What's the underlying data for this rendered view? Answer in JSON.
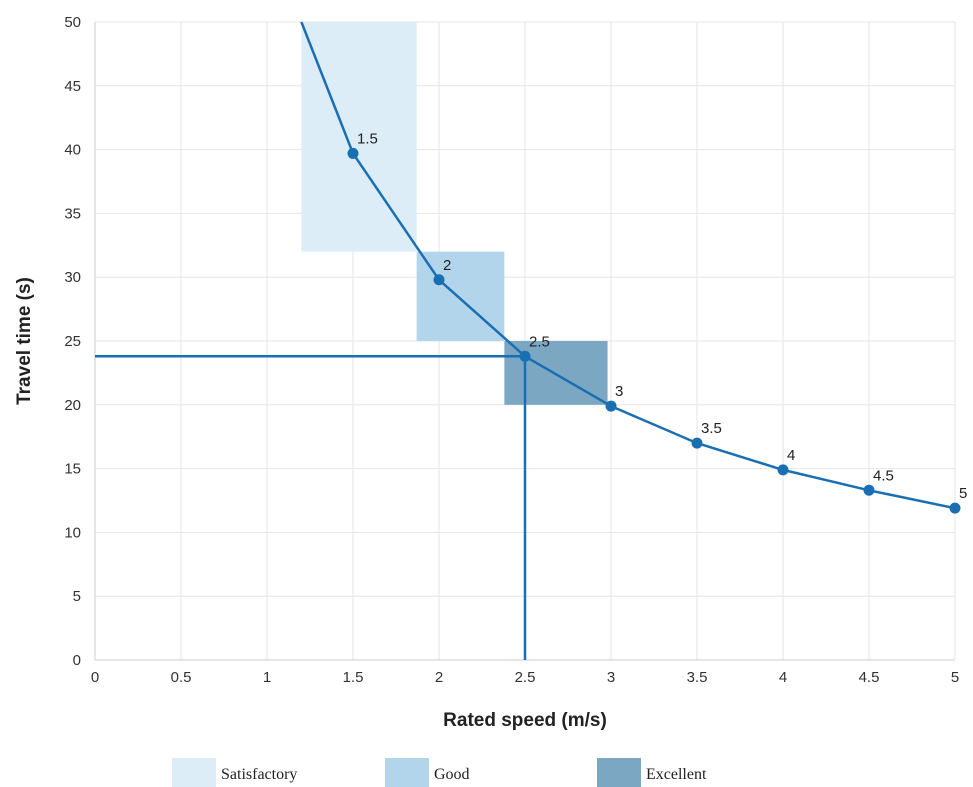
{
  "chart_data": {
    "type": "line",
    "title": "",
    "xlabel": "Rated speed (m/s)",
    "ylabel": "Travel time (s)",
    "xlim": [
      0,
      5
    ],
    "ylim": [
      0,
      50
    ],
    "x_ticks": [
      0,
      0.5,
      1,
      1.5,
      2,
      2.5,
      3,
      3.5,
      4,
      4.5,
      5
    ],
    "y_ticks": [
      0,
      5,
      10,
      15,
      20,
      25,
      30,
      35,
      40,
      45,
      50
    ],
    "grid": true,
    "legend_position": "bottom",
    "colors": {
      "line": "#1a6fb3",
      "grid": "#e6e6e6",
      "axis": "#cccccc"
    },
    "series": [
      {
        "line_start": {
          "x": 1.2,
          "y": 50
        },
        "points": [
          {
            "x": 1.5,
            "y": 39.7,
            "label": "1.5"
          },
          {
            "x": 2,
            "y": 29.8,
            "label": "2"
          },
          {
            "x": 2.5,
            "y": 23.8,
            "label": "2.5"
          },
          {
            "x": 3,
            "y": 19.9,
            "label": "3"
          },
          {
            "x": 3.5,
            "y": 17.0,
            "label": "3.5"
          },
          {
            "x": 4,
            "y": 14.9,
            "label": "4"
          },
          {
            "x": 4.5,
            "y": 13.3,
            "label": "4.5"
          },
          {
            "x": 5,
            "y": 11.9,
            "label": "5"
          }
        ]
      }
    ],
    "bands": [
      {
        "name": "Satisfactory",
        "x": [
          1.2,
          1.87
        ],
        "y": [
          32,
          50
        ],
        "color": "#dcedf8"
      },
      {
        "name": "Good",
        "x": [
          1.87,
          2.38
        ],
        "y": [
          25,
          32
        ],
        "color": "#b2d5ec"
      },
      {
        "name": "Excellent",
        "x": [
          2.38,
          2.98
        ],
        "y": [
          20,
          25
        ],
        "color": "#7ba7c3"
      }
    ],
    "reference_lines": {
      "horizontal_y": 23.8,
      "vertical_x": 2.5,
      "color": "#1a6fb3"
    }
  }
}
